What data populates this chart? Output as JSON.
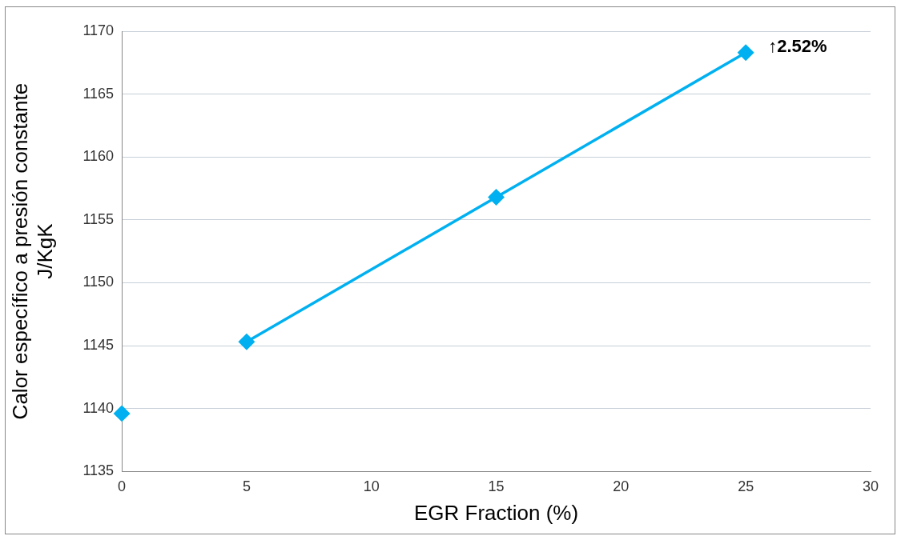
{
  "chart_data": {
    "type": "line",
    "xlabel": "EGR Fraction (%)",
    "ylabel": "Calor específico a presión constante\nJ/KgK",
    "series": [
      {
        "type": "scatter",
        "color": "#00b0f0",
        "x": [
          0
        ],
        "values": [
          1139.6
        ]
      },
      {
        "type": "line",
        "color": "#00b0f0",
        "x": [
          5,
          15,
          25
        ],
        "values": [
          1145.3,
          1156.8,
          1168.3
        ]
      }
    ],
    "xlim": [
      0,
      30
    ],
    "xticks": [
      0,
      5,
      10,
      15,
      20,
      25,
      30
    ],
    "ylim": [
      1135,
      1170
    ],
    "yticks": [
      1135,
      1140,
      1145,
      1150,
      1155,
      1160,
      1165,
      1170
    ],
    "grid": "y",
    "legend": false,
    "marker": "diamond",
    "line_style": "solid",
    "annotations": [
      {
        "text": "↑2.52%",
        "x": 25,
        "y": 1168.3
      }
    ]
  }
}
